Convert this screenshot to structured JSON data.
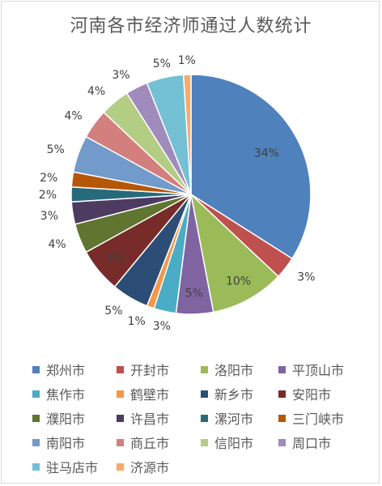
{
  "chart_data": {
    "type": "pie",
    "title": "河南各市经济师通过人数统计",
    "categories": [
      "郑州市",
      "开封市",
      "洛阳市",
      "平顶山市",
      "焦作市",
      "鹤壁市",
      "新乡市",
      "安阳市",
      "濮阳市",
      "许昌市",
      "漯河市",
      "三门峡市",
      "南阳市",
      "商丘市",
      "信阳市",
      "周口市",
      "驻马店市",
      "济源市"
    ],
    "values": [
      34,
      3,
      10,
      5,
      3,
      1,
      5,
      6,
      4,
      3,
      2,
      2,
      5,
      4,
      4,
      3,
      5,
      1
    ],
    "labels": [
      "34%",
      "3%",
      "10%",
      "5%",
      "3%",
      "1%",
      "5%",
      "6%",
      "4%",
      "3%",
      "2%",
      "2%",
      "5%",
      "4%",
      "4%",
      "3%",
      "5%",
      "1%"
    ],
    "colors": [
      "#4f81bd",
      "#c0504d",
      "#9bbb59",
      "#8064a2",
      "#4bacc6",
      "#f79646",
      "#2c4d75",
      "#772c2a",
      "#5f7530",
      "#4d3b62",
      "#276a7c",
      "#b65708",
      "#729aca",
      "#d27f7d",
      "#b4cd84",
      "#a08bbd",
      "#74c0d5",
      "#f8ab68"
    ],
    "legend_position": "bottom"
  }
}
